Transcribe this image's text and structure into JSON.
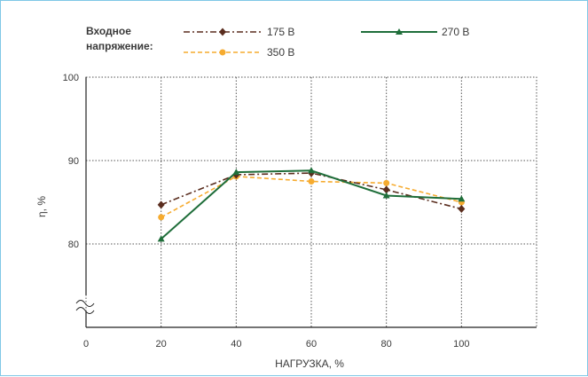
{
  "chart_data": {
    "type": "line",
    "title": "",
    "legend_title": [
      "Входное",
      "напряжение:"
    ],
    "legend_placement": "top",
    "xlabel": "НАГРУЗКА, %",
    "ylabel": "η, %",
    "x_ticks": [
      "0",
      "20",
      "40",
      "60",
      "80",
      "100"
    ],
    "y_ticks": [
      "80",
      "90",
      "100"
    ],
    "xlim": [
      0,
      120
    ],
    "ylim": [
      72,
      100
    ],
    "y_axis_break": true,
    "grid": true,
    "x": [
      20,
      40,
      60,
      80,
      100
    ],
    "series": [
      {
        "name": "175 В",
        "values": [
          84.7,
          88.3,
          88.5,
          86.5,
          84.2
        ],
        "color": "#5a2d1e",
        "line_style": "dash-dot",
        "marker": "diamond"
      },
      {
        "name": "270 В",
        "values": [
          80.6,
          88.6,
          88.8,
          85.8,
          85.4
        ],
        "color": "#1f6e3a",
        "line_style": "solid",
        "marker": "triangle"
      },
      {
        "name": "350 В",
        "values": [
          83.2,
          88.1,
          87.5,
          87.3,
          85.0
        ],
        "color": "#f6ab2f",
        "line_style": "dashed",
        "marker": "circle"
      }
    ]
  }
}
